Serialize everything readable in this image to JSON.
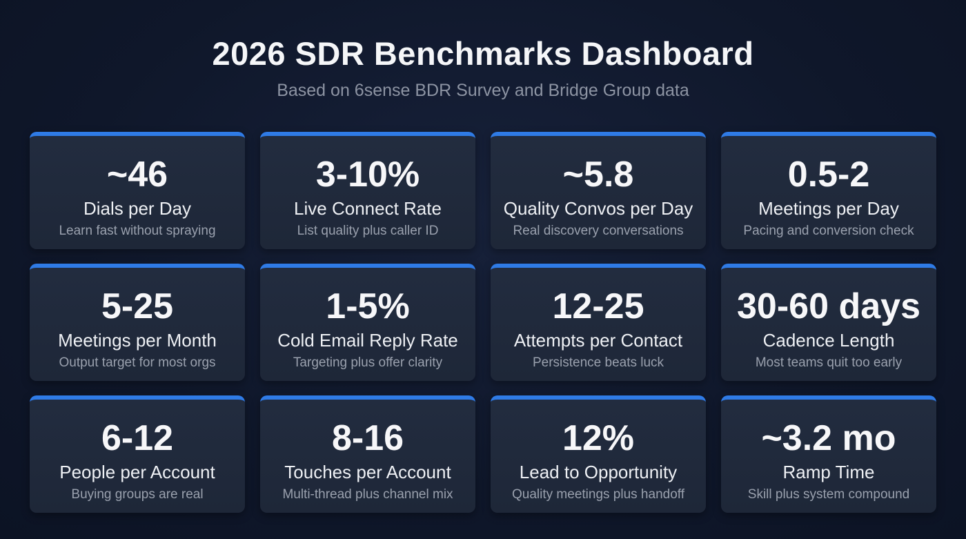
{
  "header": {
    "title": "2026 SDR Benchmarks Dashboard",
    "subtitle": "Based on 6sense BDR Survey and Bridge Group data"
  },
  "accent_color": "#2f7be6",
  "cards": [
    {
      "value": "~46",
      "label": "Dials per Day",
      "note": "Learn fast without spraying"
    },
    {
      "value": "3-10%",
      "label": "Live Connect Rate",
      "note": "List quality plus caller ID"
    },
    {
      "value": "~5.8",
      "label": "Quality Convos per Day",
      "note": "Real discovery conversations"
    },
    {
      "value": "0.5-2",
      "label": "Meetings per Day",
      "note": "Pacing and conversion check"
    },
    {
      "value": "5-25",
      "label": "Meetings per Month",
      "note": "Output target for most orgs"
    },
    {
      "value": "1-5%",
      "label": "Cold Email Reply Rate",
      "note": "Targeting plus offer clarity"
    },
    {
      "value": "12-25",
      "label": "Attempts per Contact",
      "note": "Persistence beats luck"
    },
    {
      "value": "30-60 days",
      "label": "Cadence Length",
      "note": "Most teams quit too early"
    },
    {
      "value": "6-12",
      "label": "People per Account",
      "note": "Buying groups are real"
    },
    {
      "value": "8-16",
      "label": "Touches per Account",
      "note": "Multi-thread plus channel mix"
    },
    {
      "value": "12%",
      "label": "Lead to Opportunity",
      "note": "Quality meetings plus handoff"
    },
    {
      "value": "~3.2 mo",
      "label": "Ramp Time",
      "note": "Skill plus system compound"
    }
  ]
}
